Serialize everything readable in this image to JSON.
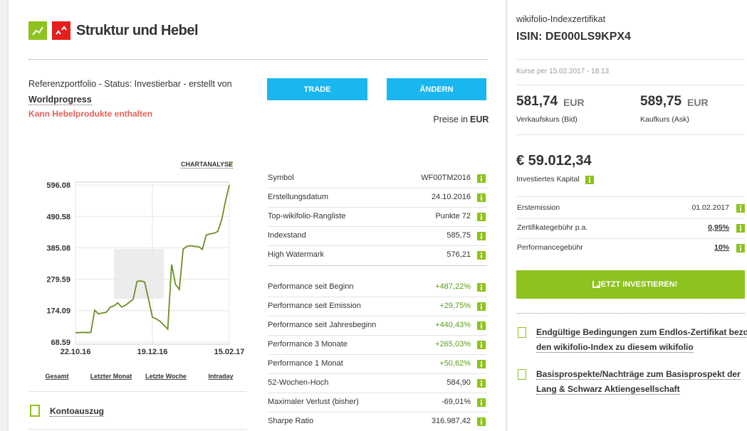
{
  "header": {
    "title": "Struktur und Hebel"
  },
  "portfolio": {
    "status": "Referenzportfolio - Status: Investierbar - erstellt von",
    "author": "Worldprogress",
    "warning": "Kann Hebelprodukte enthalten"
  },
  "actions": {
    "trade": "TRADE",
    "change": "ÄNDERN"
  },
  "prices": {
    "label": "Preise in",
    "currency": "EUR"
  },
  "chart_link": "CHARTANALYSE",
  "chart_data": {
    "type": "line",
    "color": "#6b8e23",
    "categories": [
      "22.10.16",
      null,
      null,
      null,
      null,
      null,
      null,
      null,
      null,
      null,
      null,
      null,
      null,
      null,
      null,
      null,
      null,
      null,
      null,
      null,
      "19.12.16",
      null,
      null,
      null,
      null,
      null,
      null,
      null,
      null,
      null,
      null,
      null,
      null,
      null,
      null,
      null,
      null,
      null,
      null,
      null,
      "15.02.17"
    ],
    "values": [
      100,
      100,
      101,
      100,
      101,
      175,
      163,
      166,
      168,
      185,
      190,
      200,
      186,
      192,
      202,
      212,
      272,
      274,
      270,
      212,
      152,
      146,
      138,
      125,
      112,
      329,
      262,
      245,
      381,
      390,
      392,
      390,
      389,
      380,
      428,
      432,
      434,
      440,
      478,
      541,
      596
    ],
    "ylim": [
      61,
      606
    ],
    "yticks": [
      68.59,
      174.09,
      279.59,
      385.08,
      490.58,
      596.08
    ],
    "grid": true
  },
  "ranges": [
    "Gesamt",
    "Letzter Monat",
    "Letzte Woche",
    "Intraday"
  ],
  "statement": "Kontoauszug",
  "stats": [
    [
      [
        "Symbol",
        "WF00TM2016"
      ],
      [
        "Erstellungsdatum",
        "24.10.2016"
      ],
      [
        "Top-wikifolio-Rangliste",
        "Punkte 72"
      ],
      [
        "Indexstand",
        "585,75"
      ],
      [
        "High Watermark",
        "576,21"
      ]
    ],
    [
      [
        "Performance seit Beginn",
        "+487,22%"
      ],
      [
        "Performance seit Emission",
        "+29,75%"
      ],
      [
        "Performance seit Jahresbeginn",
        "+440,43%"
      ],
      [
        "Performance 3 Monate",
        "+265,03%"
      ],
      [
        "Performance 1 Monat",
        "+50,62%"
      ],
      [
        "52-Wochen-Hoch",
        "584,90"
      ],
      [
        "Maximaler Verlust (bisher)",
        "-69,01%"
      ],
      [
        "Sharpe Ratio",
        "316.987,42"
      ]
    ]
  ],
  "certificate": {
    "kind": "wikifolio-Indexzertifikat",
    "isin": "ISIN: DE000LS9KPX4",
    "quote_time": "Kurse per 15.02.2017 - 18:13",
    "bid": {
      "price": "581,74",
      "currency": "EUR",
      "label": "Verkaufskurs (Bid)"
    },
    "ask": {
      "price": "589,75",
      "currency": "EUR",
      "label": "Kaufkurs (Ask)"
    },
    "capital": "€ 59.012,34",
    "capital_label": "Investiertes Kapital",
    "rows": [
      [
        "Erstemission",
        "01.02.2017"
      ],
      [
        "Zertifikategebühr p.a.",
        "0,95%"
      ],
      [
        "Performancegebühr",
        "10%"
      ]
    ],
    "invest": "JETZT INVESTIEREN!",
    "documents": [
      [
        "Endgültige Bedingungen zum Endlos-Zertifikat bezogen auf",
        "den wikifolio-Index zu diesem wikifolio"
      ],
      [
        "Basisprospekte/Nachträge zum Basisprospekt der",
        "Lang & Schwarz Aktiengesellschaft"
      ]
    ]
  }
}
